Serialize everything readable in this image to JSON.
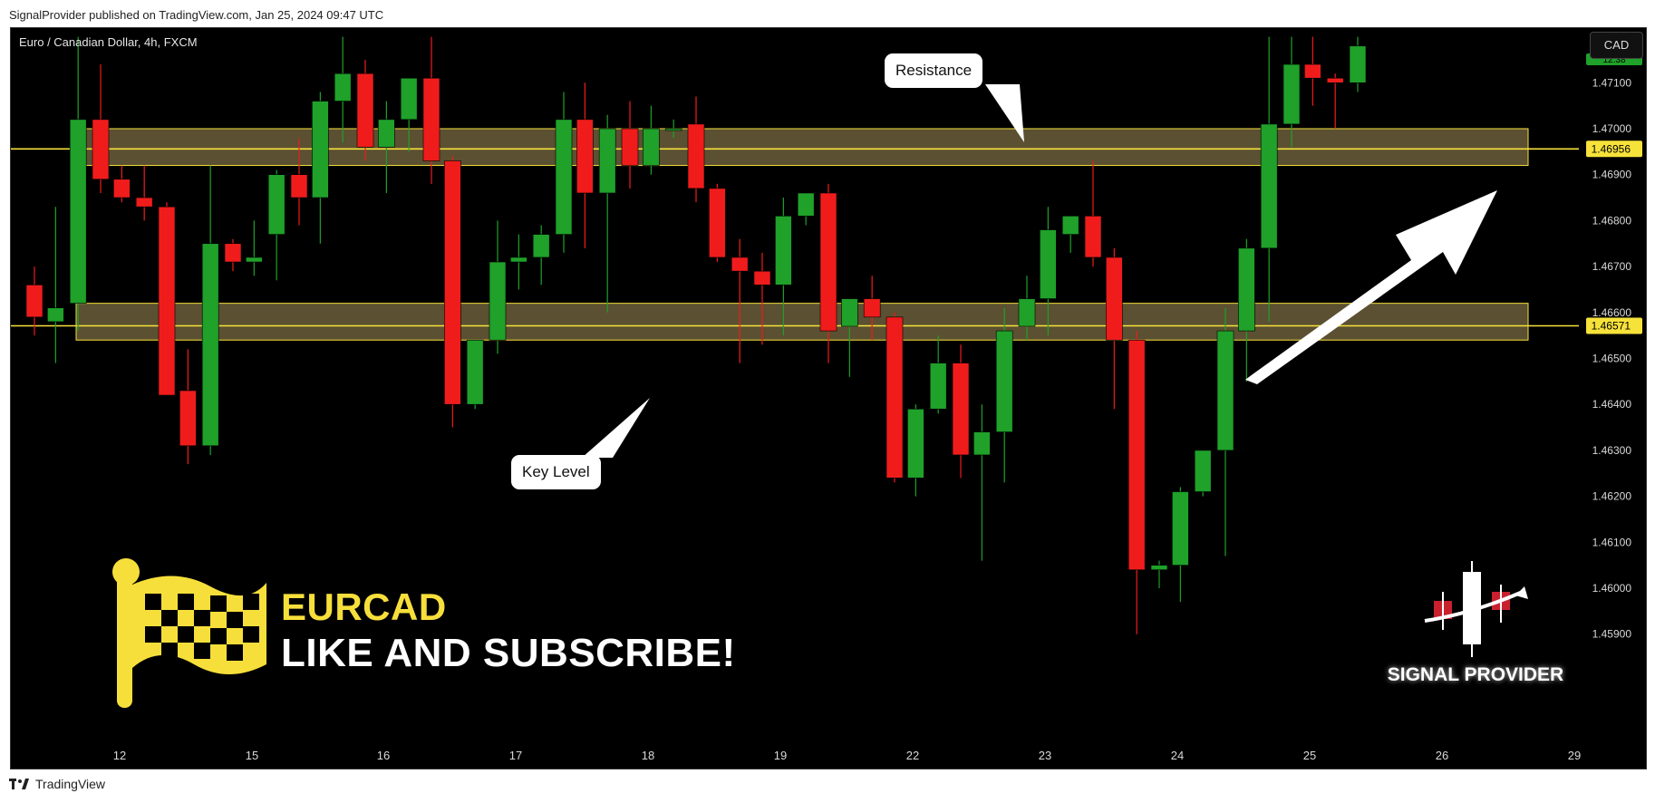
{
  "header": {
    "published_by": "SignalProvider published on TradingView.com, Jan 25, 2024 09:47 UTC"
  },
  "footer": {
    "brand": "TradingView"
  },
  "chart": {
    "symbol_line": "Euro / Canadian Dollar, 4h, FXCM",
    "currency_button": "CAD",
    "current_price_tag": "12:38",
    "resistance_label": "Resistance",
    "key_level_label": "Key Level",
    "promo_ticker": "EURCAD",
    "promo_cta": "LIKE AND SUBSCRIBE!",
    "logo_text": "SIGNAL PROVIDER",
    "colors": {
      "up": "#1fa12a",
      "down": "#f01c1c",
      "zone_fill": "#6b5e3a",
      "zone_line": "#f7e23a",
      "background": "#000000"
    }
  },
  "chart_data": {
    "type": "candlestick",
    "title": "Euro / Canadian Dollar, 4h, FXCM",
    "ylim": [
      1.4589,
      1.472
    ],
    "y_ticks": [
      "1.47100",
      "1.47000",
      "1.46900",
      "1.46800",
      "1.46700",
      "1.46600",
      "1.46500",
      "1.46400",
      "1.46300",
      "1.46200",
      "1.46100",
      "1.46000",
      "1.45900"
    ],
    "x_ticks": [
      "12",
      "15",
      "16",
      "17",
      "18",
      "19",
      "22",
      "23",
      "24",
      "25",
      "26",
      "29"
    ],
    "price_labels": [
      {
        "name": "resistance_line",
        "value": "1.46956"
      },
      {
        "name": "support_line",
        "value": "1.46571"
      }
    ],
    "zones": [
      {
        "name": "Resistance",
        "from": 1.4692,
        "to": 1.47
      },
      {
        "name": "Key Level",
        "from": 1.4654,
        "to": 1.4662
      }
    ],
    "candles": [
      {
        "x": 0.0,
        "o": 1.4666,
        "h": 1.467,
        "l": 1.4655,
        "c": 1.4659
      },
      {
        "x": 0.16,
        "o": 1.4658,
        "h": 1.4683,
        "l": 1.4649,
        "c": 1.4661
      },
      {
        "x": 0.33,
        "o": 1.4662,
        "h": 1.472,
        "l": 1.4656,
        "c": 1.4702
      },
      {
        "x": 0.5,
        "o": 1.4702,
        "h": 1.4714,
        "l": 1.4686,
        "c": 1.4689
      },
      {
        "x": 0.66,
        "o": 1.4689,
        "h": 1.4692,
        "l": 1.4684,
        "c": 1.4685
      },
      {
        "x": 0.83,
        "o": 1.4685,
        "h": 1.4692,
        "l": 1.468,
        "c": 1.4683
      },
      {
        "x": 1.0,
        "o": 1.4683,
        "h": 1.4684,
        "l": 1.4642,
        "c": 1.4642
      },
      {
        "x": 1.16,
        "o": 1.4643,
        "h": 1.4652,
        "l": 1.4627,
        "c": 1.4631
      },
      {
        "x": 1.33,
        "o": 1.4631,
        "h": 1.4692,
        "l": 1.4629,
        "c": 1.4675
      },
      {
        "x": 1.5,
        "o": 1.4675,
        "h": 1.4676,
        "l": 1.4669,
        "c": 1.4671
      },
      {
        "x": 1.66,
        "o": 1.4671,
        "h": 1.468,
        "l": 1.4668,
        "c": 1.4672
      },
      {
        "x": 1.83,
        "o": 1.4677,
        "h": 1.4691,
        "l": 1.4667,
        "c": 1.469
      },
      {
        "x": 2.0,
        "o": 1.469,
        "h": 1.4698,
        "l": 1.4679,
        "c": 1.4685
      },
      {
        "x": 2.16,
        "o": 1.4685,
        "h": 1.4708,
        "l": 1.4675,
        "c": 1.4706
      },
      {
        "x": 2.33,
        "o": 1.4706,
        "h": 1.472,
        "l": 1.4697,
        "c": 1.4712
      },
      {
        "x": 2.5,
        "o": 1.4712,
        "h": 1.4715,
        "l": 1.4693,
        "c": 1.4696
      },
      {
        "x": 2.66,
        "o": 1.4696,
        "h": 1.4706,
        "l": 1.4686,
        "c": 1.4702
      },
      {
        "x": 2.83,
        "o": 1.4702,
        "h": 1.4711,
        "l": 1.4695,
        "c": 1.4711
      },
      {
        "x": 3.0,
        "o": 1.4711,
        "h": 1.472,
        "l": 1.4688,
        "c": 1.4693
      },
      {
        "x": 3.16,
        "o": 1.4693,
        "h": 1.4694,
        "l": 1.4635,
        "c": 1.464
      },
      {
        "x": 3.33,
        "o": 1.464,
        "h": 1.4654,
        "l": 1.4639,
        "c": 1.4654
      },
      {
        "x": 3.5,
        "o": 1.4654,
        "h": 1.468,
        "l": 1.4651,
        "c": 1.4671
      },
      {
        "x": 3.66,
        "o": 1.4671,
        "h": 1.4677,
        "l": 1.4665,
        "c": 1.4672
      },
      {
        "x": 3.83,
        "o": 1.4672,
        "h": 1.4679,
        "l": 1.4666,
        "c": 1.4677
      },
      {
        "x": 4.0,
        "o": 1.4677,
        "h": 1.4708,
        "l": 1.4673,
        "c": 1.4702
      },
      {
        "x": 4.16,
        "o": 1.4702,
        "h": 1.471,
        "l": 1.4674,
        "c": 1.4686
      },
      {
        "x": 4.33,
        "o": 1.4686,
        "h": 1.4703,
        "l": 1.466,
        "c": 1.47
      },
      {
        "x": 4.5,
        "o": 1.47,
        "h": 1.4706,
        "l": 1.4687,
        "c": 1.4692
      },
      {
        "x": 4.66,
        "o": 1.4692,
        "h": 1.4705,
        "l": 1.469,
        "c": 1.47
      },
      {
        "x": 4.83,
        "o": 1.47,
        "h": 1.4702,
        "l": 1.4698,
        "c": 1.47
      },
      {
        "x": 5.0,
        "o": 1.4701,
        "h": 1.4707,
        "l": 1.4684,
        "c": 1.4687
      },
      {
        "x": 5.16,
        "o": 1.4687,
        "h": 1.4688,
        "l": 1.4671,
        "c": 1.4672
      },
      {
        "x": 5.33,
        "o": 1.4672,
        "h": 1.4676,
        "l": 1.4649,
        "c": 1.4669
      },
      {
        "x": 5.5,
        "o": 1.4669,
        "h": 1.4673,
        "l": 1.4653,
        "c": 1.4666
      },
      {
        "x": 5.66,
        "o": 1.4666,
        "h": 1.4685,
        "l": 1.4655,
        "c": 1.4681
      },
      {
        "x": 5.83,
        "o": 1.4681,
        "h": 1.4686,
        "l": 1.4679,
        "c": 1.4686
      },
      {
        "x": 6.0,
        "o": 1.4686,
        "h": 1.4688,
        "l": 1.4649,
        "c": 1.4656
      },
      {
        "x": 6.16,
        "o": 1.4657,
        "h": 1.4663,
        "l": 1.4646,
        "c": 1.4663
      },
      {
        "x": 6.33,
        "o": 1.4663,
        "h": 1.4668,
        "l": 1.4654,
        "c": 1.4659
      },
      {
        "x": 6.5,
        "o": 1.4659,
        "h": 1.466,
        "l": 1.4623,
        "c": 1.4624
      },
      {
        "x": 6.66,
        "o": 1.4624,
        "h": 1.464,
        "l": 1.462,
        "c": 1.4639
      },
      {
        "x": 6.83,
        "o": 1.4639,
        "h": 1.4655,
        "l": 1.4638,
        "c": 1.4649
      },
      {
        "x": 7.0,
        "o": 1.4649,
        "h": 1.4653,
        "l": 1.4624,
        "c": 1.4629
      },
      {
        "x": 7.16,
        "o": 1.4629,
        "h": 1.464,
        "l": 1.4606,
        "c": 1.4634
      },
      {
        "x": 7.33,
        "o": 1.4634,
        "h": 1.4661,
        "l": 1.4623,
        "c": 1.4656
      },
      {
        "x": 7.5,
        "o": 1.4657,
        "h": 1.4668,
        "l": 1.4654,
        "c": 1.4663
      },
      {
        "x": 7.66,
        "o": 1.4663,
        "h": 1.4683,
        "l": 1.4655,
        "c": 1.4678
      },
      {
        "x": 7.83,
        "o": 1.4677,
        "h": 1.4681,
        "l": 1.4673,
        "c": 1.4681
      },
      {
        "x": 8.0,
        "o": 1.4681,
        "h": 1.4693,
        "l": 1.467,
        "c": 1.4672
      },
      {
        "x": 8.16,
        "o": 1.4672,
        "h": 1.4674,
        "l": 1.4639,
        "c": 1.4654
      },
      {
        "x": 8.33,
        "o": 1.4654,
        "h": 1.4656,
        "l": 1.459,
        "c": 1.4604
      },
      {
        "x": 8.5,
        "o": 1.4604,
        "h": 1.4606,
        "l": 1.46,
        "c": 1.4605
      },
      {
        "x": 8.66,
        "o": 1.4605,
        "h": 1.4622,
        "l": 1.4597,
        "c": 1.4621
      },
      {
        "x": 8.83,
        "o": 1.4621,
        "h": 1.463,
        "l": 1.462,
        "c": 1.463
      },
      {
        "x": 9.0,
        "o": 1.463,
        "h": 1.4661,
        "l": 1.4607,
        "c": 1.4656
      },
      {
        "x": 9.16,
        "o": 1.4656,
        "h": 1.4676,
        "l": 1.4645,
        "c": 1.4674
      },
      {
        "x": 9.33,
        "o": 1.4674,
        "h": 1.472,
        "l": 1.4658,
        "c": 1.4701
      },
      {
        "x": 9.5,
        "o": 1.4701,
        "h": 1.472,
        "l": 1.4696,
        "c": 1.4714
      },
      {
        "x": 9.66,
        "o": 1.4714,
        "h": 1.472,
        "l": 1.4705,
        "c": 1.4711
      },
      {
        "x": 9.83,
        "o": 1.4711,
        "h": 1.4712,
        "l": 1.47,
        "c": 1.471
      },
      {
        "x": 10.0,
        "o": 1.471,
        "h": 1.472,
        "l": 1.4708,
        "c": 1.4718
      }
    ]
  }
}
